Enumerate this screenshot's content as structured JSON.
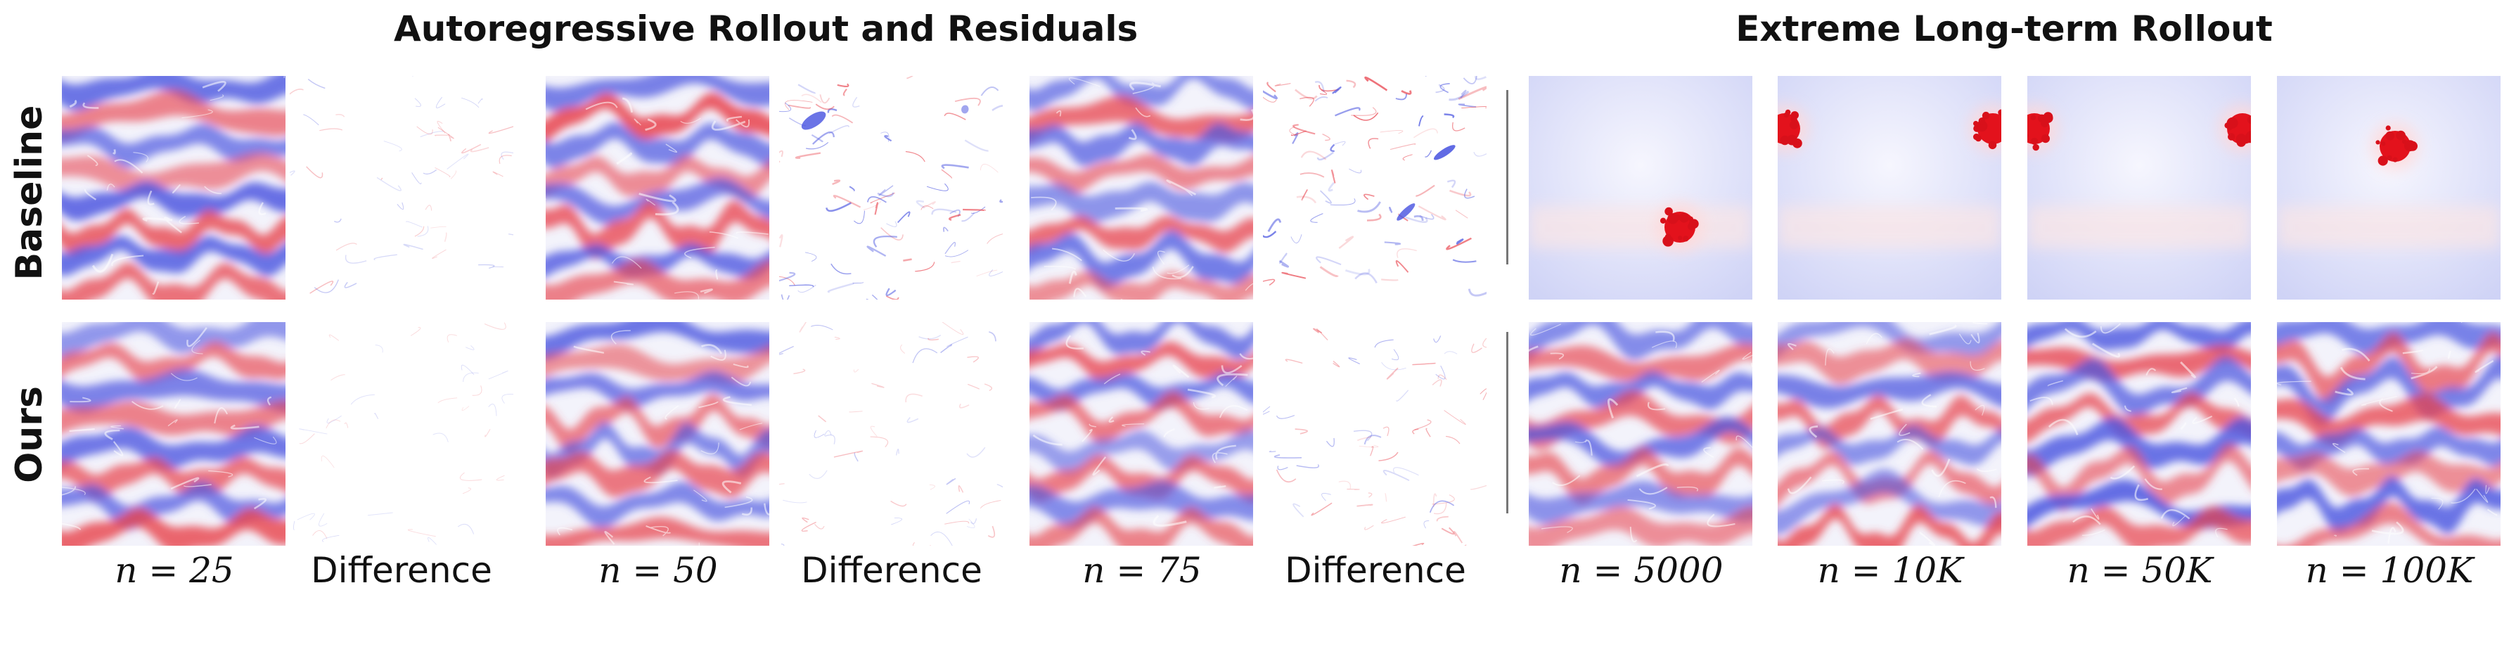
{
  "sections": {
    "left_title": "Autoregressive Rollout and Residuals",
    "right_title": "Extreme Long-term Rollout"
  },
  "rows": [
    {
      "label": "Baseline"
    },
    {
      "label": "Ours"
    }
  ],
  "columns": [
    {
      "label": "n = 25",
      "kind": "field"
    },
    {
      "label": "Difference",
      "kind": "difference"
    },
    {
      "label": "n = 50",
      "kind": "field"
    },
    {
      "label": "Difference",
      "kind": "difference"
    },
    {
      "label": "n = 75",
      "kind": "field"
    },
    {
      "label": "Difference",
      "kind": "difference"
    },
    {
      "label": "n = 5000",
      "kind": "field"
    },
    {
      "label": "n = 10K",
      "kind": "field"
    },
    {
      "label": "n = 50K",
      "kind": "field"
    },
    {
      "label": "n = 100K",
      "kind": "field"
    }
  ],
  "colors": {
    "positive": "#e8414b",
    "negative": "#4a55e0",
    "neutral": "#ffffff"
  }
}
